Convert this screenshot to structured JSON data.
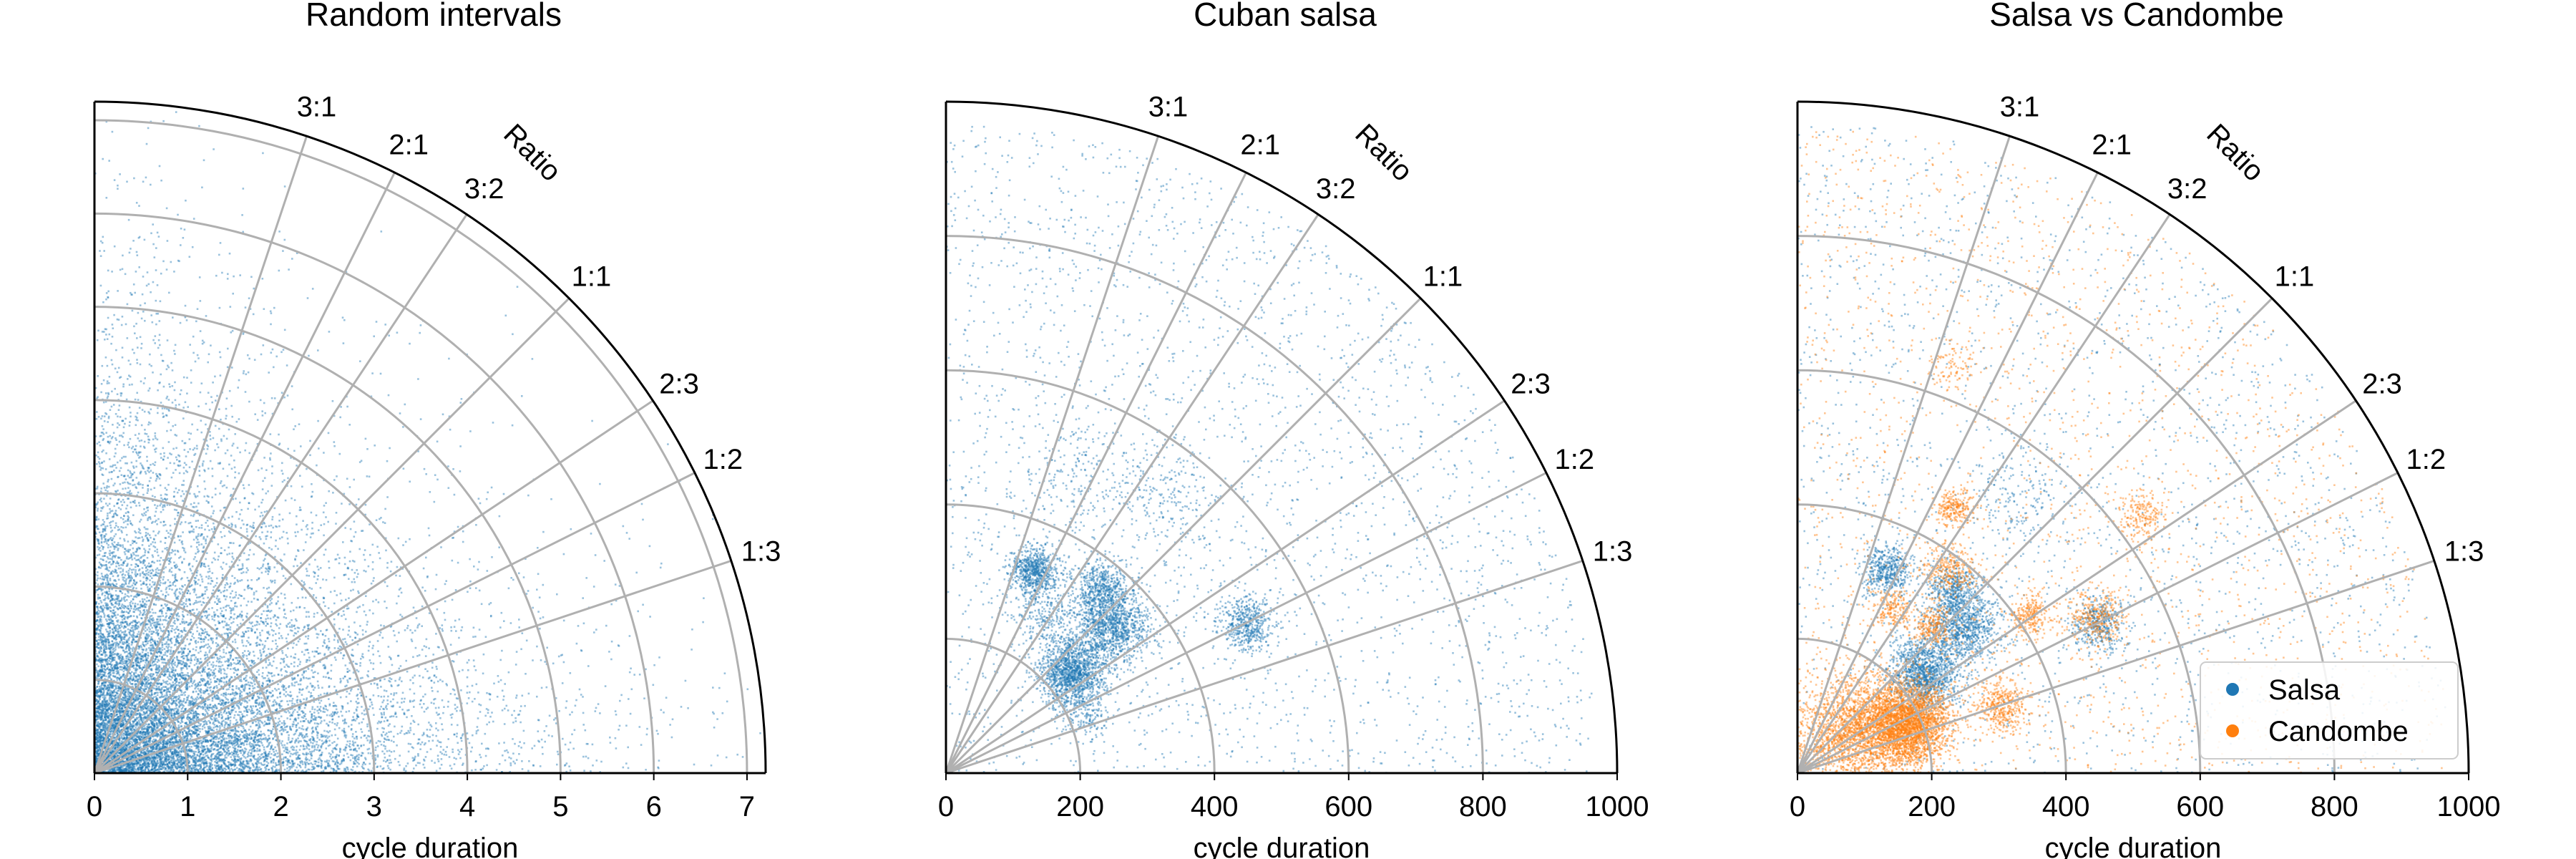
{
  "chart_data": [
    {
      "type": "scatter",
      "projection": "polar-quadrant",
      "title": "Random intervals",
      "xlabel": "cycle duration",
      "rlim": [
        0,
        7.2
      ],
      "rticks": [
        0,
        1,
        2,
        3,
        4,
        5,
        6,
        7
      ],
      "rtick_labels": [
        "0",
        "1",
        "2",
        "3",
        "4",
        "5",
        "6",
        "7"
      ],
      "ratio_axis_label": "Ratio",
      "ratios": [
        {
          "label": "3:1",
          "value": 3.0
        },
        {
          "label": "2:1",
          "value": 2.0
        },
        {
          "label": "3:2",
          "value": 1.5
        },
        {
          "label": "1:1",
          "value": 1.0
        },
        {
          "label": "2:3",
          "value": 0.6667
        },
        {
          "label": "1:2",
          "value": 0.5
        },
        {
          "label": "1:3",
          "value": 0.3333
        }
      ],
      "grid": true,
      "series": [
        {
          "color": "#1f77b4",
          "distribution": "random",
          "scale": 1.15,
          "count": 14000
        }
      ]
    },
    {
      "type": "scatter",
      "projection": "polar-quadrant",
      "title": "Cuban salsa",
      "xlabel": "cycle duration",
      "rlim": [
        0,
        1000
      ],
      "rticks": [
        0,
        200,
        400,
        600,
        800,
        1000
      ],
      "rtick_labels": [
        "0",
        "200",
        "400",
        "600",
        "800",
        "1000"
      ],
      "ratio_axis_label": "Ratio",
      "ratios": [
        {
          "label": "3:1",
          "value": 3.0
        },
        {
          "label": "2:1",
          "value": 2.0
        },
        {
          "label": "3:2",
          "value": 1.5
        },
        {
          "label": "1:1",
          "value": 1.0
        },
        {
          "label": "2:3",
          "value": 0.6667
        },
        {
          "label": "1:2",
          "value": 0.5
        },
        {
          "label": "1:3",
          "value": 0.3333
        }
      ],
      "grid": true,
      "series": [
        {
          "color": "#1f77b4",
          "clusters": [
            {
              "r": 240,
              "ratio": 0.8,
              "sd": 25,
              "count": 1400
            },
            {
              "r": 330,
              "ratio": 0.9,
              "sd": 28,
              "count": 1200
            },
            {
              "r": 330,
              "ratio": 2.3,
              "sd": 18,
              "count": 700
            },
            {
              "r": 500,
              "ratio": 0.5,
              "sd": 20,
              "count": 500
            },
            {
              "r": 360,
              "ratio": 1.2,
              "sd": 20,
              "count": 500
            },
            {
              "r": 280,
              "ratio": 1.6,
              "sd": 25,
              "count": 250
            },
            {
              "r": 530,
              "ratio": 1.3,
              "sd": 40,
              "count": 200
            },
            {
              "r": 480,
              "ratio": 2.3,
              "sd": 40,
              "count": 150
            },
            {
              "r": 220,
              "ratio": 0.42,
              "sd": 20,
              "count": 150
            }
          ],
          "background_count": 2500
        }
      ]
    },
    {
      "type": "scatter",
      "projection": "polar-quadrant",
      "title": "Salsa vs Candombe",
      "xlabel": "cycle duration",
      "rlim": [
        0,
        1000
      ],
      "rticks": [
        0,
        200,
        400,
        600,
        800,
        1000
      ],
      "rtick_labels": [
        "0",
        "200",
        "400",
        "600",
        "800",
        "1000"
      ],
      "ratio_axis_label": "Ratio",
      "ratios": [
        {
          "label": "3:1",
          "value": 3.0
        },
        {
          "label": "2:1",
          "value": 2.0
        },
        {
          "label": "3:2",
          "value": 1.5
        },
        {
          "label": "1:1",
          "value": 1.0
        },
        {
          "label": "2:3",
          "value": 0.6667
        },
        {
          "label": "1:2",
          "value": 0.5
        },
        {
          "label": "1:3",
          "value": 0.3333
        }
      ],
      "grid": true,
      "legend": {
        "placement": "lower-right"
      },
      "series": [
        {
          "name": "Salsa",
          "color": "#1f77b4",
          "clusters": [
            {
              "r": 240,
              "ratio": 0.8,
              "sd": 25,
              "count": 1200
            },
            {
              "r": 330,
              "ratio": 0.9,
              "sd": 28,
              "count": 1000
            },
            {
              "r": 330,
              "ratio": 2.3,
              "sd": 18,
              "count": 500
            },
            {
              "r": 500,
              "ratio": 0.5,
              "sd": 20,
              "count": 400
            },
            {
              "r": 360,
              "ratio": 1.2,
              "sd": 20,
              "count": 400
            },
            {
              "r": 530,
              "ratio": 1.3,
              "sd": 40,
              "count": 200
            }
          ],
          "background_count": 1800
        },
        {
          "name": "Candombe",
          "color": "#ff7f0e",
          "clusters": [
            {
              "r": 180,
              "ratio": 0.45,
              "sd": 30,
              "count": 2600
            },
            {
              "r": 130,
              "ratio": 0.7,
              "sd": 40,
              "count": 1500
            },
            {
              "r": 80,
              "ratio": 0.9,
              "sd": 40,
              "count": 900
            },
            {
              "r": 320,
              "ratio": 0.33,
              "sd": 20,
              "count": 400
            },
            {
              "r": 460,
              "ratio": 1.7,
              "sd": 15,
              "count": 250
            },
            {
              "r": 380,
              "ratio": 1.35,
              "sd": 20,
              "count": 300
            },
            {
              "r": 420,
              "ratio": 0.68,
              "sd": 15,
              "count": 250
            },
            {
              "r": 500,
              "ratio": 0.52,
              "sd": 20,
              "count": 300
            },
            {
              "r": 640,
              "ratio": 0.75,
              "sd": 18,
              "count": 200
            },
            {
              "r": 280,
              "ratio": 1.7,
              "sd": 15,
              "count": 200
            },
            {
              "r": 300,
              "ratio": 1.1,
              "sd": 15,
              "count": 250
            },
            {
              "r": 650,
              "ratio": 2.6,
              "sd": 20,
              "count": 100
            }
          ],
          "background_count": 1800
        }
      ]
    }
  ]
}
